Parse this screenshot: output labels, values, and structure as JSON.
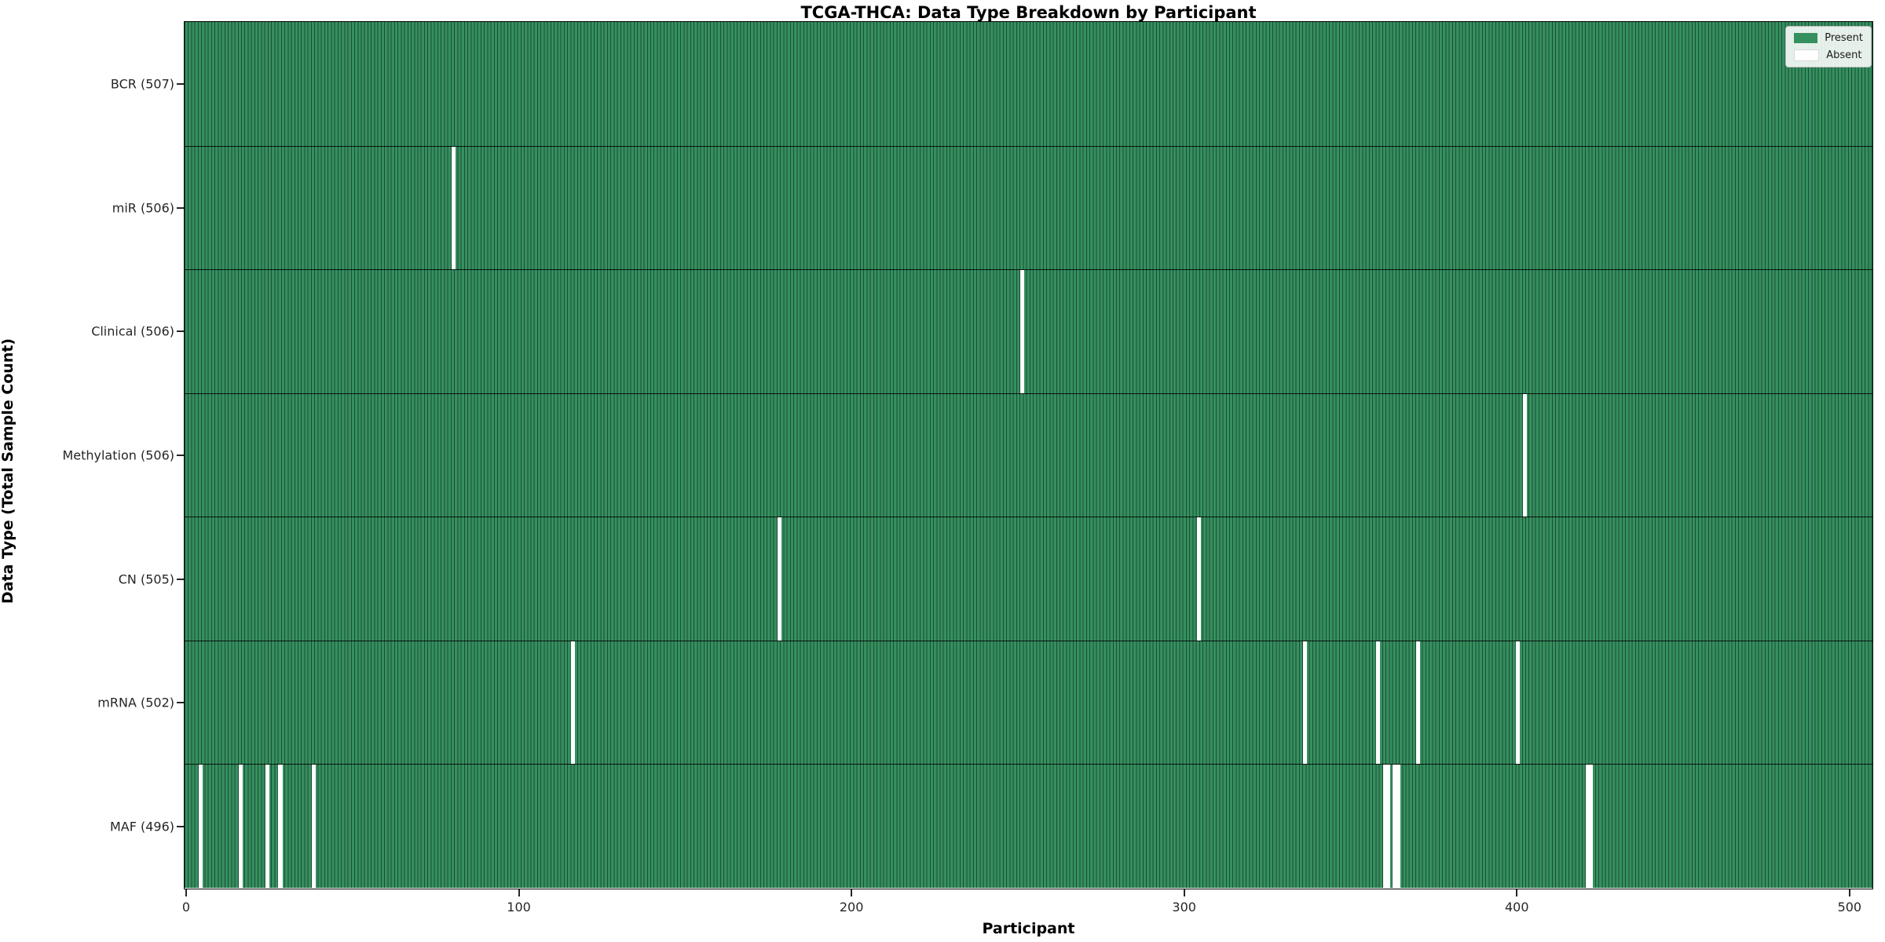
{
  "chart_data": {
    "type": "heatmap",
    "title": "TCGA-THCA: Data Type Breakdown by Participant",
    "xlabel": "Participant",
    "ylabel": "Data Type (Total Sample Count)",
    "x_ticks": [
      0,
      100,
      200,
      300,
      400,
      500
    ],
    "x_range_participants": 507,
    "grid": false,
    "legend_position": "upper right",
    "legend": [
      {
        "label": "Present",
        "color": "#35905f"
      },
      {
        "label": "Absent",
        "color": "#ffffff"
      }
    ],
    "colors": {
      "present_fill": "#35905f",
      "bar_edge": "#1d4d35",
      "absent_fill": "#ffffff",
      "frame": "#000000"
    },
    "rows": [
      {
        "label": "BCR (507)",
        "total": 507,
        "absent_participants": []
      },
      {
        "label": "miR (506)",
        "total": 506,
        "absent_participants": [
          80
        ]
      },
      {
        "label": "Clinical (506)",
        "total": 506,
        "absent_participants": [
          251
        ]
      },
      {
        "label": "Methylation (506)",
        "total": 506,
        "absent_participants": [
          402
        ]
      },
      {
        "label": "CN (505)",
        "total": 505,
        "absent_participants": [
          178,
          304
        ]
      },
      {
        "label": "mRNA (502)",
        "total": 502,
        "absent_participants": [
          116,
          336,
          358,
          370,
          400
        ]
      },
      {
        "label": "MAF (496)",
        "total": 496,
        "absent_participants": [
          4,
          16,
          24,
          28,
          38,
          360,
          361,
          363,
          364,
          421,
          422
        ]
      }
    ]
  }
}
